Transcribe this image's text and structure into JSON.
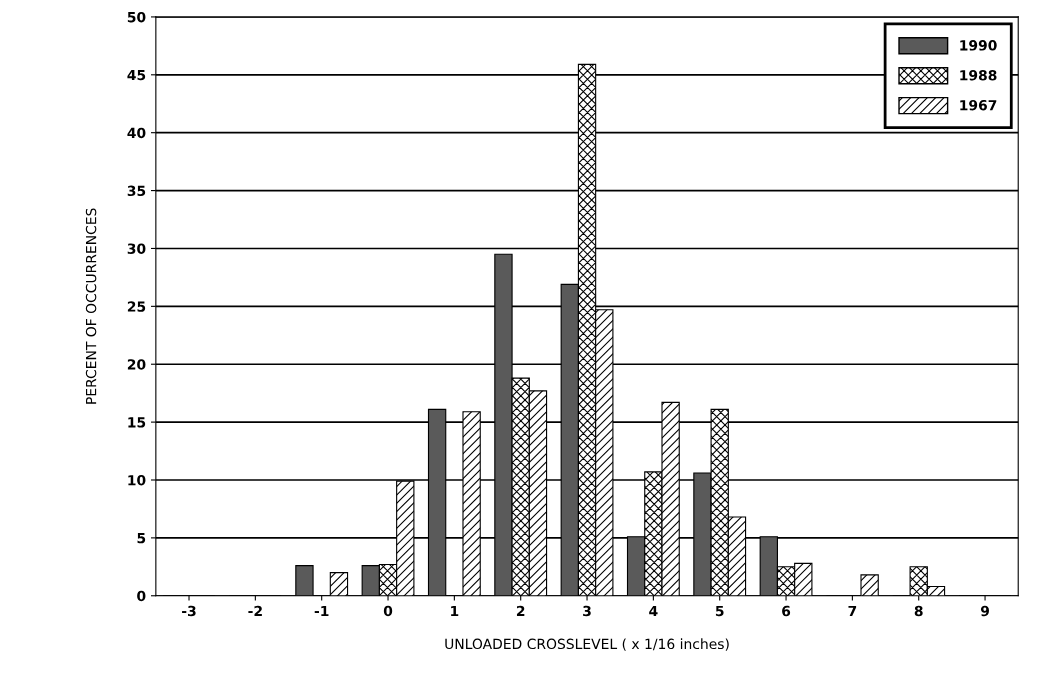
{
  "chart_data": {
    "type": "bar",
    "xlabel": "UNLOADED CROSSLEVEL ( x 1/16 inches)",
    "ylabel": "PERCENT OF OCCURRENCES",
    "categories": [
      "-3",
      "-2",
      "-1",
      "0",
      "1",
      "2",
      "3",
      "4",
      "5",
      "6",
      "7",
      "8",
      "9"
    ],
    "series": [
      {
        "name": "1990",
        "color": "#5a5a5a",
        "values": [
          0,
          0,
          2.6,
          2.6,
          16.1,
          29.5,
          26.9,
          5.1,
          10.6,
          5.1,
          0,
          0,
          0
        ]
      },
      {
        "name": "1988",
        "color": "#000000",
        "values": [
          0,
          0,
          0,
          2.7,
          0,
          18.8,
          45.9,
          10.7,
          16.1,
          2.5,
          0,
          2.5,
          0
        ]
      },
      {
        "name": "1967",
        "color": "#000000",
        "values": [
          0,
          0,
          2.0,
          9.9,
          15.9,
          17.7,
          24.7,
          16.7,
          6.8,
          2.8,
          1.8,
          0.8,
          0
        ]
      }
    ],
    "ylim": [
      0,
      50
    ],
    "yticks": [
      0,
      5,
      10,
      15,
      20,
      25,
      30,
      35,
      40,
      45,
      50
    ],
    "grid": "y",
    "legend": "top right"
  }
}
